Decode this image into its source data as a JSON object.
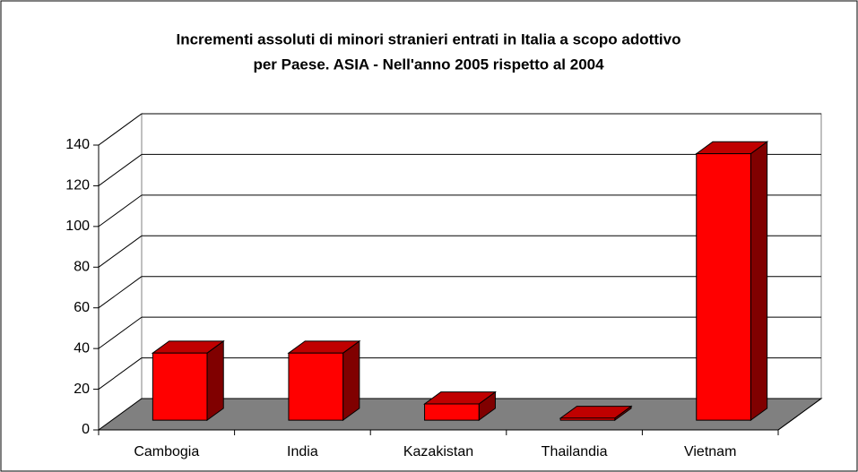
{
  "chart_data": {
    "type": "bar3d",
    "title": [
      "Incrementi assoluti di minori stranieri entrati in Italia a scopo adottivo",
      "per Paese. ASIA - Nell'anno 2005 rispetto al 2004"
    ],
    "categories": [
      "Cambogia",
      "India",
      "Kazakistan",
      "Thailandia",
      "Vietnam"
    ],
    "values": [
      33,
      33,
      8,
      1,
      131
    ],
    "color": "#ff0000",
    "ylim": [
      0,
      140
    ],
    "yticks": [
      0,
      20,
      40,
      60,
      80,
      100,
      120,
      140
    ],
    "grid": true
  }
}
